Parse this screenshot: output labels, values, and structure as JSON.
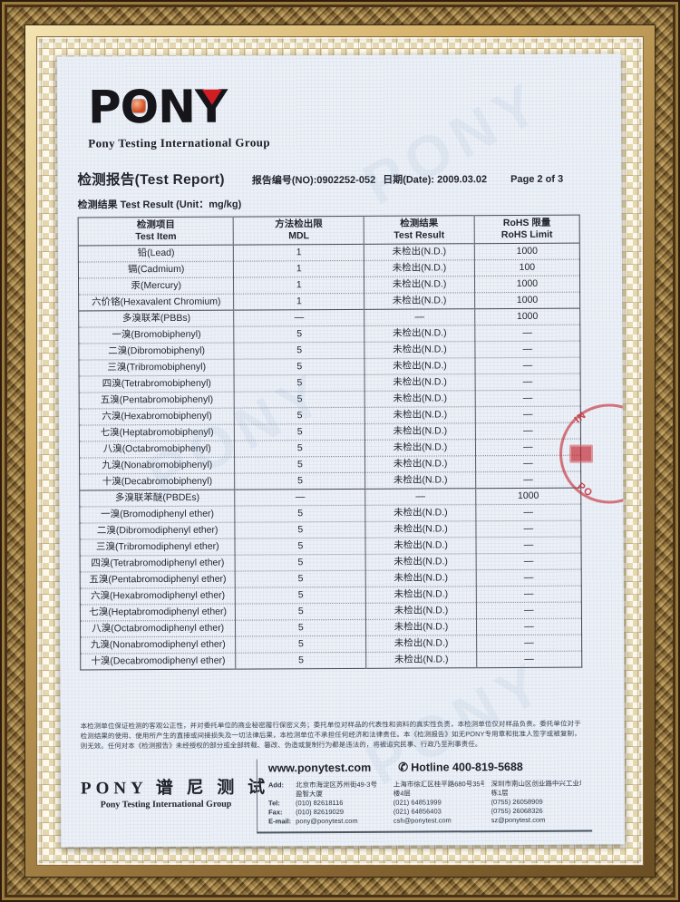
{
  "logo": {
    "letters": [
      "P",
      "O",
      "N",
      "Y"
    ],
    "subtitle": "Pony Testing International Group"
  },
  "header": {
    "report_title": "检测报告(Test Report)",
    "report_no": "报告编号(NO):0902252-052",
    "date": "日期(Date): 2009.03.02",
    "page_info": "Page 2 of 3",
    "result_line": "检测结果 Test Result  (Unit：mg/kg)"
  },
  "table": {
    "headers": [
      {
        "cn": "检测项目",
        "en": "Test Item"
      },
      {
        "cn": "方法检出限",
        "en": "MDL"
      },
      {
        "cn": "检测结果",
        "en": "Test Result"
      },
      {
        "cn": "RoHS 限量",
        "en": "RoHS Limit"
      }
    ],
    "rows": [
      {
        "item": "铅(Lead)",
        "mdl": "1",
        "result": "未检出(N.D.)",
        "limit": "1000"
      },
      {
        "item": "镉(Cadmium)",
        "mdl": "1",
        "result": "未检出(N.D.)",
        "limit": "100"
      },
      {
        "item": "汞(Mercury)",
        "mdl": "1",
        "result": "未检出(N.D.)",
        "limit": "1000"
      },
      {
        "item": "六价铬(Hexavalent Chromium)",
        "mdl": "1",
        "result": "未检出(N.D.)",
        "limit": "1000"
      },
      {
        "item": "多溴联苯(PBBs)",
        "mdl": "—",
        "result": "—",
        "limit": "1000",
        "section": true
      },
      {
        "item": "一溴(Bromobiphenyl)",
        "mdl": "5",
        "result": "未检出(N.D.)",
        "limit": "—"
      },
      {
        "item": "二溴(Dibromobiphenyl)",
        "mdl": "5",
        "result": "未检出(N.D.)",
        "limit": "—"
      },
      {
        "item": "三溴(Tribromobiphenyl)",
        "mdl": "5",
        "result": "未检出(N.D.)",
        "limit": "—"
      },
      {
        "item": "四溴(Tetrabromobiphenyl)",
        "mdl": "5",
        "result": "未检出(N.D.)",
        "limit": "—"
      },
      {
        "item": "五溴(Pentabromobiphenyl)",
        "mdl": "5",
        "result": "未检出(N.D.)",
        "limit": "—"
      },
      {
        "item": "六溴(Hexabromobiphenyl)",
        "mdl": "5",
        "result": "未检出(N.D.)",
        "limit": "—"
      },
      {
        "item": "七溴(Heptabromobiphenyl)",
        "mdl": "5",
        "result": "未检出(N.D.)",
        "limit": "—"
      },
      {
        "item": "八溴(Octabromobiphenyl)",
        "mdl": "5",
        "result": "未检出(N.D.)",
        "limit": "—"
      },
      {
        "item": "九溴(Nonabromobiphenyl)",
        "mdl": "5",
        "result": "未检出(N.D.)",
        "limit": "—"
      },
      {
        "item": "十溴(Decabromobiphenyl)",
        "mdl": "5",
        "result": "未检出(N.D.)",
        "limit": "—"
      },
      {
        "item": "多溴联苯醚(PBDEs)",
        "mdl": "—",
        "result": "—",
        "limit": "1000",
        "section": true
      },
      {
        "item": "一溴(Bromodiphenyl ether)",
        "mdl": "5",
        "result": "未检出(N.D.)",
        "limit": "—"
      },
      {
        "item": "二溴(Dibromodiphenyl ether)",
        "mdl": "5",
        "result": "未检出(N.D.)",
        "limit": "—"
      },
      {
        "item": "三溴(Tribromodiphenyl ether)",
        "mdl": "5",
        "result": "未检出(N.D.)",
        "limit": "—"
      },
      {
        "item": "四溴(Tetrabromodiphenyl ether)",
        "mdl": "5",
        "result": "未检出(N.D.)",
        "limit": "—"
      },
      {
        "item": "五溴(Pentabromodiphenyl ether)",
        "mdl": "5",
        "result": "未检出(N.D.)",
        "limit": "—"
      },
      {
        "item": "六溴(Hexabromodiphenyl ether)",
        "mdl": "5",
        "result": "未检出(N.D.)",
        "limit": "—"
      },
      {
        "item": "七溴(Heptabromodiphenyl ether)",
        "mdl": "5",
        "result": "未检出(N.D.)",
        "limit": "—"
      },
      {
        "item": "八溴(Octabromodiphenyl ether)",
        "mdl": "5",
        "result": "未检出(N.D.)",
        "limit": "—"
      },
      {
        "item": "九溴(Nonabromodiphenyl ether)",
        "mdl": "5",
        "result": "未检出(N.D.)",
        "limit": "—"
      },
      {
        "item": "十溴(Decabromodiphenyl ether)",
        "mdl": "5",
        "result": "未检出(N.D.)",
        "limit": "—"
      }
    ]
  },
  "stamp": {
    "letters_top": "IN",
    "letters_bottom": "PO"
  },
  "watermark": {
    "text": "PONY"
  },
  "disclaimer": "本检测单位保证检测的客观公正性，并对委托单位的商业秘密履行保密义务；委托单位对样品的代表性和资料的真实性负责，本检测单位仅对样品负责。委托单位对于检测结果的使用、使用所产生的直接或间接损失及一切法律后果，本检测单位不承担任何经济和法律责任。本《检测报告》如无PONY专用章和批准人签字或被复制，则无效。任何对本《检测报告》未经授权的部分或全部转载、篡改、伪造或复制行为都是违法的，将被追究民事、行政乃至刑事责任。",
  "footer": {
    "brand_cn": "PONY 谱 尼 测 试",
    "brand_en": "Pony Testing International Group",
    "website": "www.ponytest.com",
    "phone_icon": "✆",
    "hotline": "Hotline 400-819-5688",
    "labels": [
      "Add:",
      "",
      "Tel:",
      "Fax:",
      "E-mail:"
    ],
    "offices": [
      {
        "l1": "北京市海淀区苏州街49-3号",
        "l2": "盈智大厦",
        "tel": "(010) 82618116",
        "fax": "(010) 82619029",
        "email": "pony@ponytest.com"
      },
      {
        "l1": "上海市徐汇区桂平路680号35号",
        "l2": "楼4层",
        "tel": "(021) 64851999",
        "fax": "(021) 64856403",
        "email": "csh@ponytest.com"
      },
      {
        "l1": "深圳市南山区创业路中兴工业城6",
        "l2": "栋1层",
        "tel": "(0755) 26058909",
        "fax": "(0755) 26068326",
        "email": "sz@ponytest.com"
      }
    ]
  },
  "colors": {
    "accent_red": "#d21d23",
    "paper": "#edf1f7",
    "frame_gold": "#93713a"
  }
}
